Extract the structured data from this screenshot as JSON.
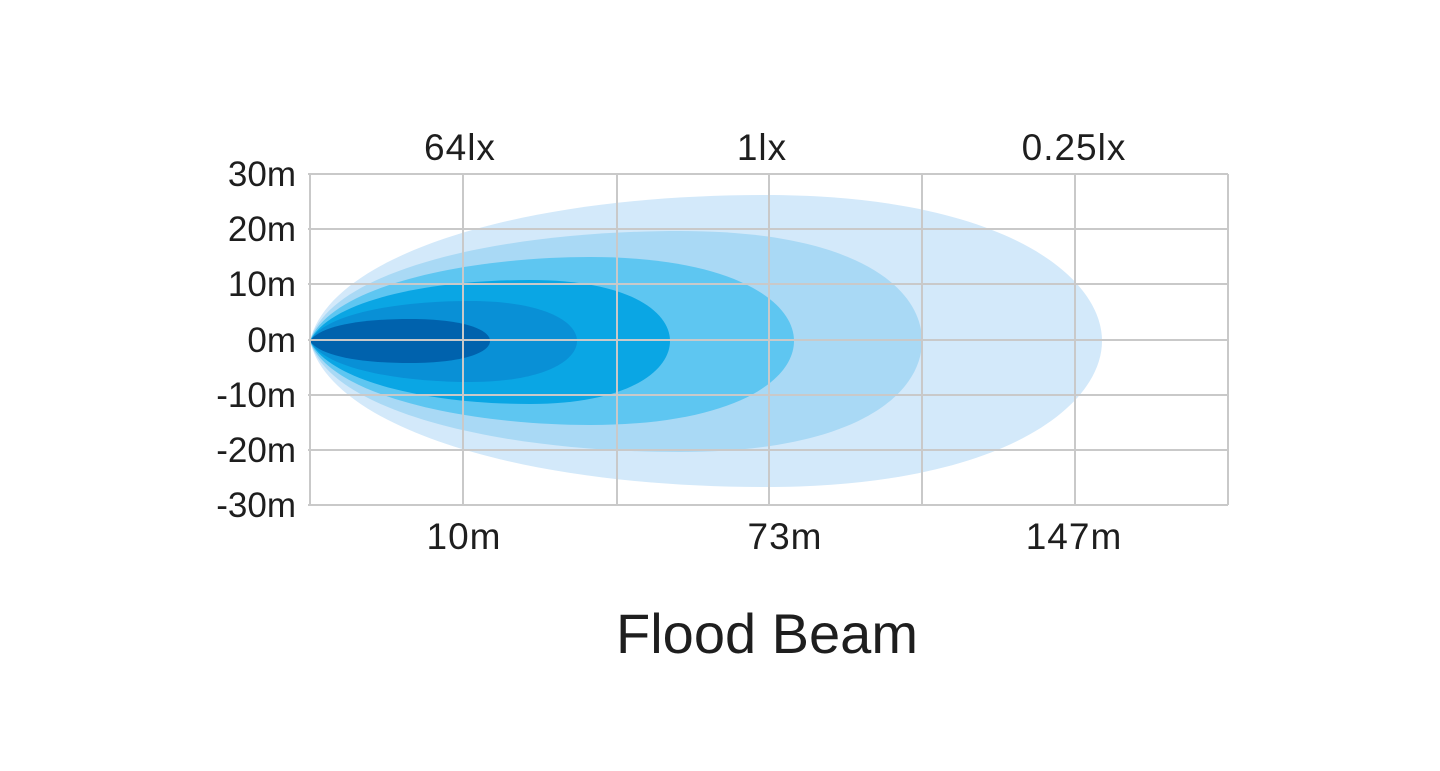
{
  "title": "Flood Beam",
  "y_axis_labels": [
    "30m",
    "20m",
    "10m",
    "0m",
    "-10m",
    "-20m",
    "-30m"
  ],
  "illuminance_labels": [
    "64lx",
    "1lx",
    "0.25lx"
  ],
  "distance_labels": [
    "10m",
    "73m",
    "147m"
  ],
  "zone_colors": [
    "#d3e9fa",
    "#a9d9f5",
    "#5ec6f1",
    "#0aa6e4",
    "#0990d6",
    "#0062ad"
  ]
}
